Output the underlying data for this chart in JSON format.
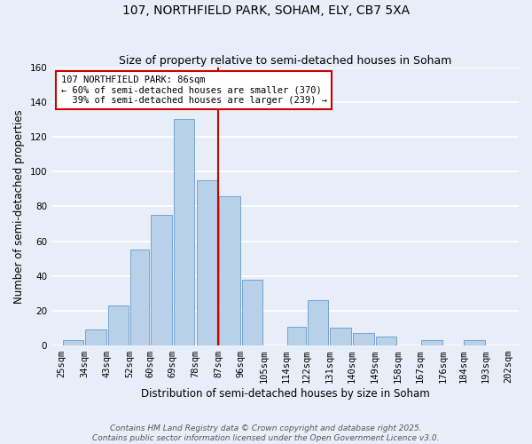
{
  "title": "107, NORTHFIELD PARK, SOHAM, ELY, CB7 5XA",
  "subtitle": "Size of property relative to semi-detached houses in Soham",
  "xlabel": "Distribution of semi-detached houses by size in Soham",
  "ylabel": "Number of semi-detached properties",
  "bar_color": "#b8d0e8",
  "bar_edge_color": "#6699cc",
  "background_color": "#e8eef8",
  "grid_color": "#ffffff",
  "vline_x": 87,
  "vline_color": "#cc0000",
  "annotation_text": "107 NORTHFIELD PARK: 86sqm\n← 60% of semi-detached houses are smaller (370)\n  39% of semi-detached houses are larger (239) →",
  "annotation_box_color": "#ffffff",
  "annotation_edge_color": "#cc0000",
  "bins": [
    25,
    34,
    43,
    52,
    60,
    69,
    78,
    87,
    96,
    105,
    114,
    122,
    131,
    140,
    149,
    158,
    167,
    176,
    184,
    193,
    202
  ],
  "bin_labels": [
    "25sqm",
    "34sqm",
    "43sqm",
    "52sqm",
    "60sqm",
    "69sqm",
    "78sqm",
    "87sqm",
    "96sqm",
    "105sqm",
    "114sqm",
    "122sqm",
    "131sqm",
    "140sqm",
    "149sqm",
    "158sqm",
    "167sqm",
    "176sqm",
    "184sqm",
    "193sqm",
    "202sqm"
  ],
  "counts": [
    3,
    9,
    23,
    55,
    75,
    130,
    95,
    86,
    38,
    0,
    11,
    26,
    10,
    7,
    5,
    0,
    3,
    0,
    3,
    0
  ],
  "ylim": [
    0,
    160
  ],
  "yticks": [
    0,
    20,
    40,
    60,
    80,
    100,
    120,
    140,
    160
  ],
  "footer_line1": "Contains HM Land Registry data © Crown copyright and database right 2025.",
  "footer_line2": "Contains public sector information licensed under the Open Government Licence v3.0.",
  "title_fontsize": 10,
  "subtitle_fontsize": 9,
  "label_fontsize": 8.5,
  "tick_fontsize": 7.5,
  "annotation_fontsize": 7.5,
  "footer_fontsize": 6.5
}
